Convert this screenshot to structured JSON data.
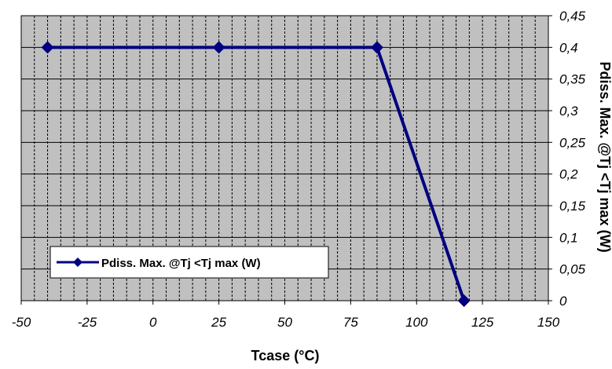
{
  "chart_data": {
    "type": "line",
    "xlabel": "Tcase (°C)",
    "ylabel": "Pdiss. Max. @Tj <Tj max (W)",
    "xlim": [
      -50,
      150
    ],
    "ylim": [
      0,
      0.45
    ],
    "x_ticks": [
      -50,
      -25,
      0,
      25,
      50,
      75,
      100,
      125,
      150
    ],
    "x_tick_labels": [
      "-50",
      "-25",
      "0",
      "25",
      "50",
      "75",
      "100",
      "125",
      "150"
    ],
    "y_ticks": [
      0,
      0.05,
      0.1,
      0.15,
      0.2,
      0.25,
      0.3,
      0.35,
      0.4,
      0.45
    ],
    "y_tick_labels": [
      "0",
      "0,05",
      "0,1",
      "0,15",
      "0,2",
      "0,25",
      "0,3",
      "0,35",
      "0,4",
      "0,45"
    ],
    "y_axis_side": "right",
    "x_minor_step": 5,
    "grid": true,
    "plot_background": "#c0c0c0",
    "legend_position": "bottom-left",
    "series": [
      {
        "name": "Pdiss. Max. @Tj <Tj max (W)",
        "color": "#000080",
        "marker": "diamond",
        "x": [
          -40,
          25,
          85,
          118
        ],
        "y": [
          0.4,
          0.4,
          0.4,
          0
        ]
      }
    ]
  }
}
